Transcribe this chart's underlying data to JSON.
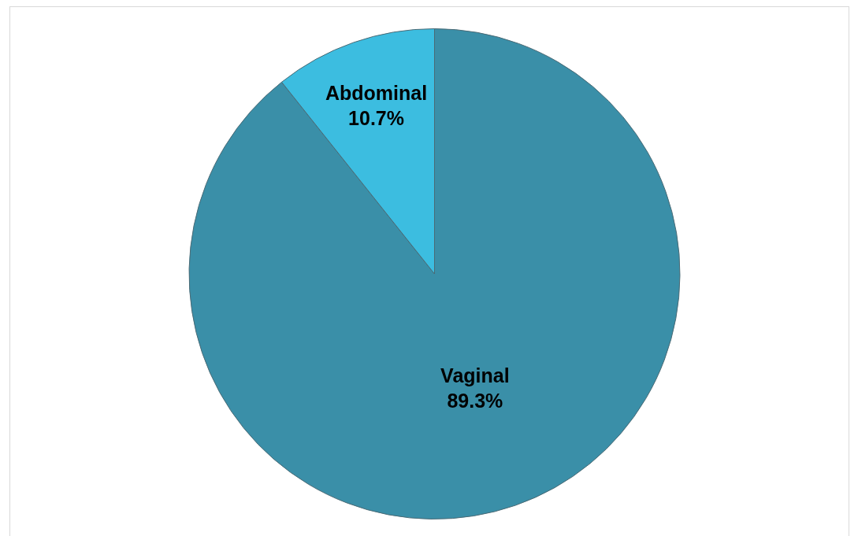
{
  "chart_data": {
    "type": "pie",
    "categories": [
      "Vaginal",
      "Abdominal"
    ],
    "values": [
      89.3,
      10.7
    ],
    "value_labels": [
      "89.3%",
      "10.7%"
    ],
    "colors": [
      "#3a8fa8",
      "#3cbde0"
    ],
    "legend": false
  }
}
